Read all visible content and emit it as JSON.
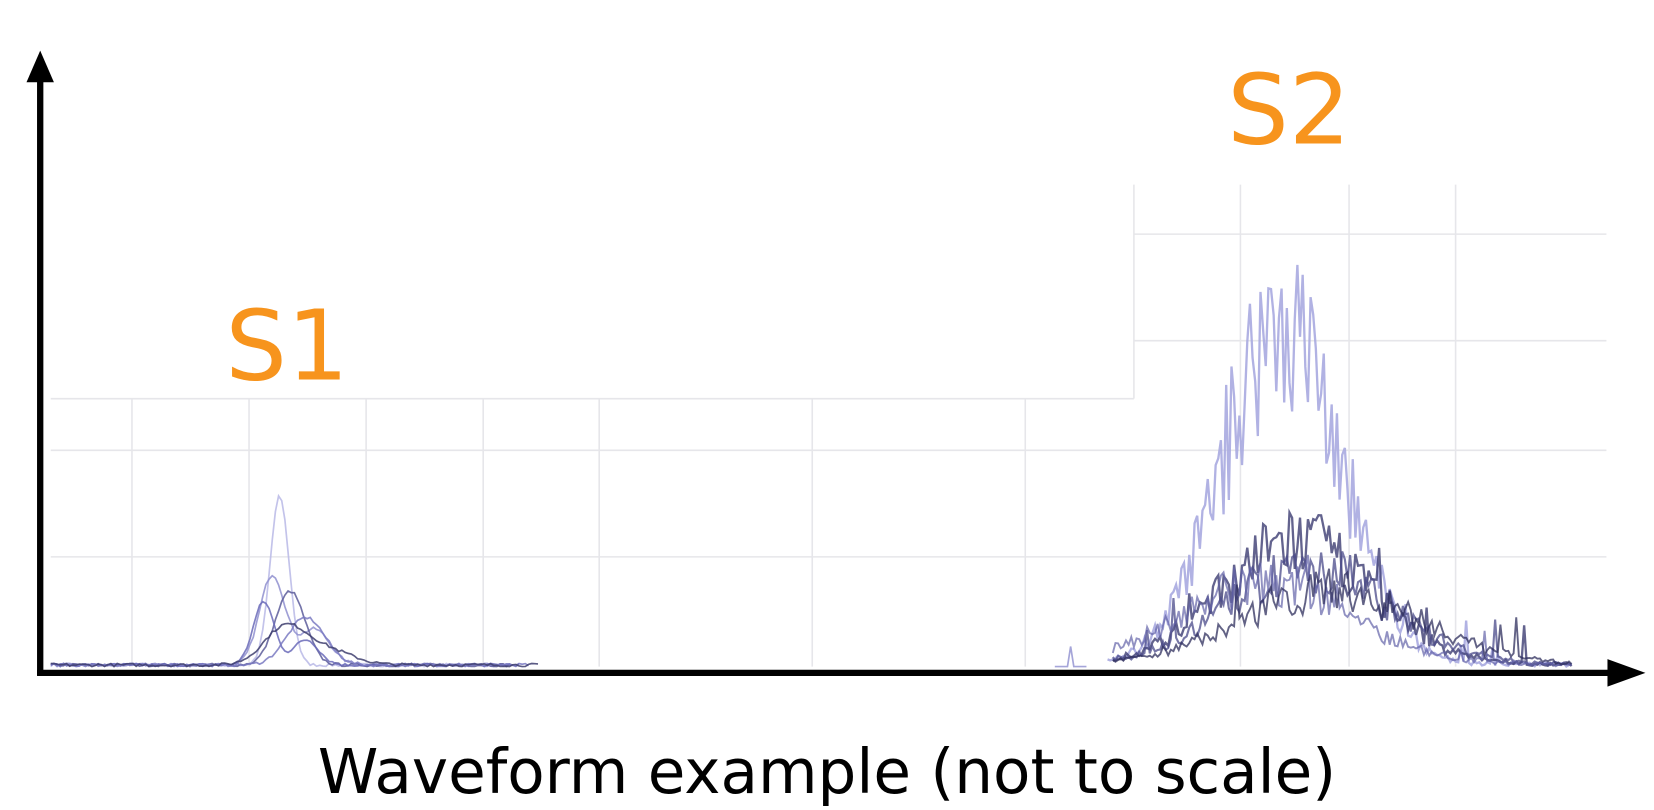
{
  "labels": {
    "s1": "S1",
    "s2": "S2"
  },
  "caption": "Waveform example (not to scale)"
}
